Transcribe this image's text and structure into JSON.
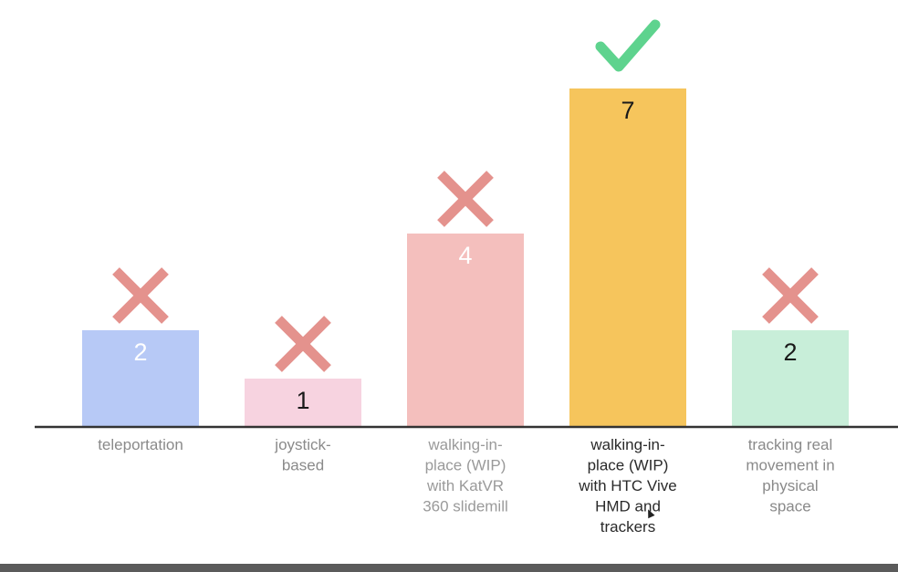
{
  "chart_data": {
    "type": "bar",
    "title": "",
    "xlabel": "",
    "ylabel": "",
    "ylim": [
      0,
      7
    ],
    "categories": [
      "teleportation",
      "joystick-based",
      "walking-in-place (WIP) with KatVR 360 slidemill",
      "walking-in-place (WIP) with HTC Vive HMD and trackers",
      "tracking real movement in physical space"
    ],
    "category_label_lines": [
      [
        "teleportation"
      ],
      [
        "joystick-",
        "based"
      ],
      [
        "walking-in-",
        "place (WIP)",
        "with KatVR",
        "360 slidemill"
      ],
      [
        "walking-in-",
        "place (WIP)",
        "with HTC Vive",
        "HMD and",
        "trackers"
      ],
      [
        "tracking real",
        "movement in",
        "physical",
        "space"
      ]
    ],
    "values": [
      2,
      1,
      4,
      7,
      2
    ],
    "value_labels": [
      "2",
      "1",
      "4",
      "7",
      "2"
    ],
    "bar_colors": [
      "#b7c9f6",
      "#f7d3e0",
      "#f4bfbd",
      "#f6c55c",
      "#c8eed9"
    ],
    "value_label_colors": [
      "#ffffff",
      "#1a1a1a",
      "#ffffff",
      "#1a1a1a",
      "#1a1a1a"
    ],
    "category_label_colors": [
      "#8a8a8a",
      "#8a8a8a",
      "#9a9a9a",
      "#2a2a2a",
      "#8a8a8a"
    ],
    "marks": [
      "cross",
      "cross",
      "cross",
      "check",
      "cross"
    ],
    "mark_colors": {
      "cross": "#e4928d",
      "check": "#5ed38e"
    },
    "axis_color": "#333333"
  }
}
